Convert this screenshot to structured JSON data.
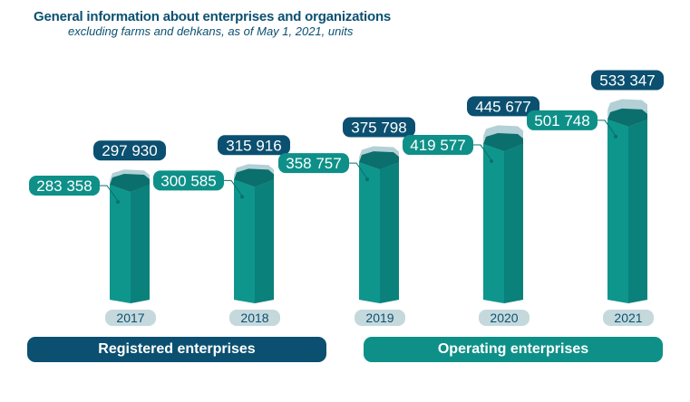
{
  "title": "General information about enterprises and organizations",
  "subtitle": "excluding farms and dehkans, as of May 1, 2021, units",
  "legend": {
    "registered": "Registered enterprises",
    "operating": "Operating enterprises"
  },
  "colors": {
    "registered": "#0b5070",
    "operating": "#0e9088",
    "registered_bar": "#b3d0d6",
    "year_pill": "#c5d9dd"
  },
  "chart_data": {
    "type": "bar",
    "categories": [
      "2017",
      "2018",
      "2019",
      "2020",
      "2021"
    ],
    "series": [
      {
        "name": "Registered enterprises",
        "values": [
          297930,
          315916,
          375798,
          445677,
          533347
        ],
        "labels": [
          "297 930",
          "315 916",
          "375 798",
          "445 677",
          "533 347"
        ]
      },
      {
        "name": "Operating enterprises",
        "values": [
          283358,
          300585,
          358757,
          419577,
          501748
        ],
        "labels": [
          "283 358",
          "300 585",
          "358 757",
          "419 577",
          "501 748"
        ]
      }
    ],
    "legend_position": "bottom",
    "grid": false
  }
}
